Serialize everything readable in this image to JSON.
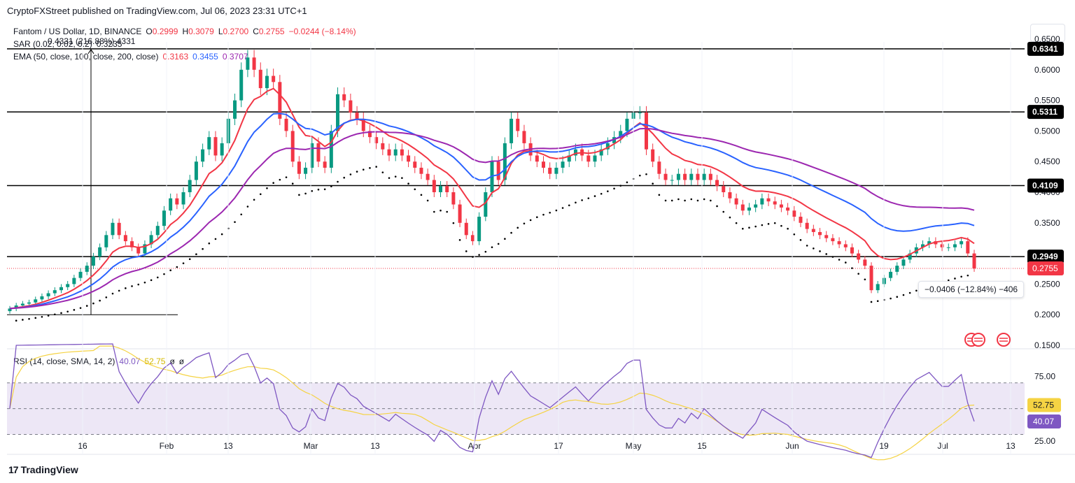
{
  "header": {
    "published": "CryptoFXStreet published on TradingView.com, Jul 06, 2023 23:31 UTC+1"
  },
  "legend": {
    "symbol": "Fantom / US Dollar, 1D, BINANCE",
    "open_label": "O",
    "open": "0.2999",
    "high_label": "H",
    "high": "0.3079",
    "low_label": "L",
    "low": "0.2700",
    "close_label": "C",
    "close": "0.2755",
    "change": "−0.0244 (−8.14%)",
    "sar_label": "SAR (0.02, 0.02, 0.2)",
    "sar_value": "0.3235",
    "ema_label": "EMA (50, close, 100, close, 200, close)",
    "ema50": "0.3163",
    "ema100": "0.3455",
    "ema200": "0.3707",
    "rsi_label": "RSI (14, close, SMA, 14, 2)",
    "rsi_value": "40.07",
    "rsi_sma": "52.75",
    "rsi_extra1": "ø",
    "rsi_extra2": "ø"
  },
  "annotations": {
    "range_measure": "0.4331 (216.88%) 4331",
    "drop_measure": "−0.0406 (−12.84%) −406"
  },
  "colors": {
    "up": "#089981",
    "down": "#f23645",
    "ema50": "#f23645",
    "ema100": "#2962ff",
    "ema200": "#9c27b0",
    "rsi": "#7e57c2",
    "rsi_sma": "#f5d343",
    "rsi_band": "#ede7f6"
  },
  "footer": {
    "brand": "TradingView",
    "logo": "17"
  },
  "chart_data": [
    {
      "type": "candlestick",
      "title": "Fantom / US Dollar, 1D, BINANCE",
      "ylim": [
        0.15,
        0.65
      ],
      "y_ticks": [
        "0.6500",
        "0.6000",
        "0.5500",
        "0.5000",
        "0.4500",
        "0.4000",
        "0.3500",
        "0.3000",
        "0.2500",
        "0.2000",
        "0.1500"
      ],
      "x_ticks": [
        "16",
        "Feb",
        "13",
        "Mar",
        "13",
        "Apr",
        "17",
        "May",
        "15",
        "Jun",
        "19",
        "Jul",
        "13"
      ],
      "price_levels": [
        {
          "label": "0.6341",
          "value": 0.6341
        },
        {
          "label": "0.5311",
          "value": 0.5311
        },
        {
          "label": "0.4109",
          "value": 0.4109
        },
        {
          "label": "0.2949",
          "value": 0.2949
        }
      ],
      "last_price": {
        "label": "0.2755",
        "value": 0.2755
      },
      "closes_sample": [
        0.21,
        0.215,
        0.218,
        0.22,
        0.225,
        0.23,
        0.235,
        0.24,
        0.245,
        0.25,
        0.26,
        0.27,
        0.28,
        0.295,
        0.31,
        0.33,
        0.35,
        0.33,
        0.32,
        0.31,
        0.3,
        0.315,
        0.33,
        0.345,
        0.37,
        0.39,
        0.38,
        0.4,
        0.42,
        0.45,
        0.47,
        0.49,
        0.46,
        0.48,
        0.52,
        0.55,
        0.6,
        0.62,
        0.6,
        0.57,
        0.59,
        0.58,
        0.52,
        0.5,
        0.45,
        0.43,
        0.44,
        0.48,
        0.45,
        0.44,
        0.5,
        0.56,
        0.55,
        0.53,
        0.52,
        0.5,
        0.49,
        0.48,
        0.47,
        0.46,
        0.47,
        0.46,
        0.45,
        0.44,
        0.43,
        0.42,
        0.4,
        0.41,
        0.4,
        0.38,
        0.35,
        0.33,
        0.32,
        0.36,
        0.4,
        0.45,
        0.42,
        0.48,
        0.52,
        0.5,
        0.48,
        0.46,
        0.45,
        0.44,
        0.43,
        0.44,
        0.45,
        0.46,
        0.47,
        0.46,
        0.45,
        0.46,
        0.47,
        0.48,
        0.49,
        0.5,
        0.52,
        0.53,
        0.53,
        0.47,
        0.45,
        0.43,
        0.42,
        0.42,
        0.43,
        0.42,
        0.43,
        0.42,
        0.43,
        0.42,
        0.41,
        0.4,
        0.39,
        0.38,
        0.37,
        0.375,
        0.38,
        0.39,
        0.385,
        0.38,
        0.375,
        0.37,
        0.36,
        0.35,
        0.34,
        0.335,
        0.33,
        0.325,
        0.32,
        0.315,
        0.31,
        0.3,
        0.29,
        0.28,
        0.24,
        0.25,
        0.26,
        0.27,
        0.28,
        0.29,
        0.3,
        0.31,
        0.315,
        0.32,
        0.315,
        0.31,
        0.31,
        0.315,
        0.32,
        0.3,
        0.2755
      ],
      "series": [
        {
          "name": "EMA 50",
          "last": 0.3163
        },
        {
          "name": "EMA 100",
          "last": 0.3455
        },
        {
          "name": "EMA 200",
          "last": 0.3707
        }
      ]
    },
    {
      "type": "line",
      "title": "RSI (14, close, SMA, 14, 2)",
      "ylim": [
        20,
        85
      ],
      "y_ticks": [
        "75.00",
        "25.00"
      ],
      "bands": [
        70,
        50,
        30
      ],
      "last_labels": [
        {
          "label": "52.75",
          "value": 52.75
        },
        {
          "label": "40.07",
          "value": 40.07
        }
      ]
    }
  ]
}
